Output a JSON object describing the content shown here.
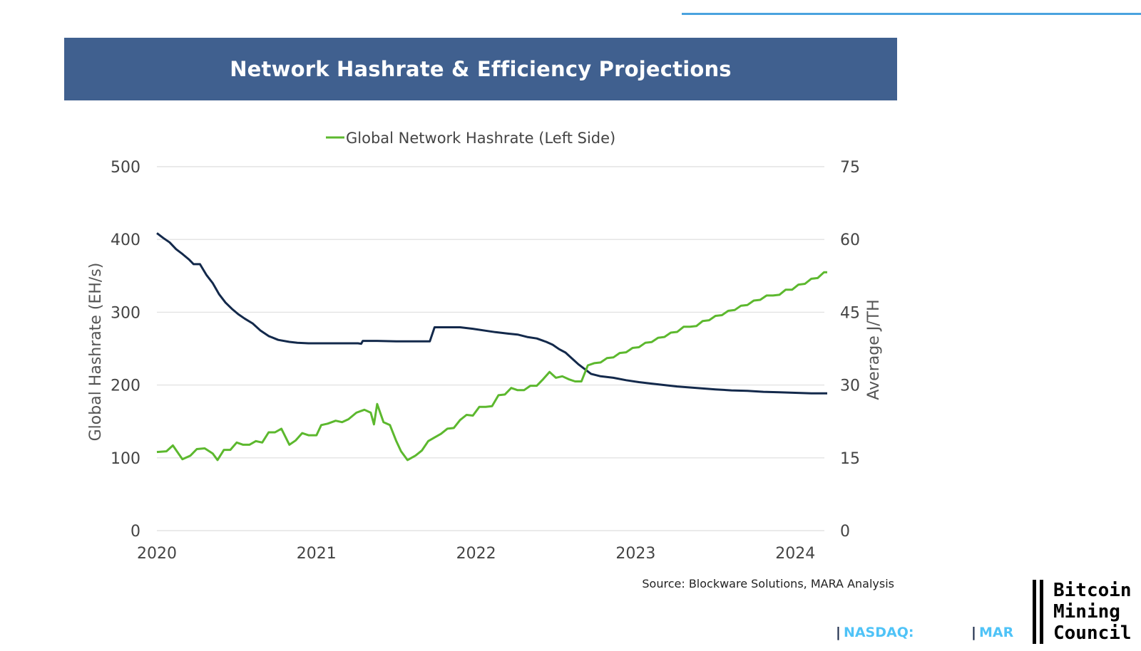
{
  "page": {
    "title": "Network Hashrate & Efficiency Projections",
    "source": "Source: Blockware Solutions, MARA Analysis",
    "footer": {
      "nasdaq_label": "NASDAQ:",
      "ticker": "MAR",
      "logo_lines": [
        "Bitcoin",
        "Mining",
        "Council"
      ]
    }
  },
  "colors": {
    "banner": "#40608f",
    "hashrate_line": "#5cb82e",
    "efficiency_line": "#13294b",
    "grid": "#e3e3e3",
    "accent": "#4aa3df"
  },
  "chart_data": {
    "type": "line",
    "legend": {
      "placement": "top-center",
      "entries": [
        "Global Network Hashrate (Left Side)"
      ]
    },
    "grid": true,
    "xlabel": "",
    "x_ticks": [
      "2020",
      "2021",
      "2022",
      "2023",
      "2024"
    ],
    "xlim": [
      2020.0,
      2024.2
    ],
    "y_left": {
      "label": "Global Hashrate (EH/s)",
      "lim": [
        0,
        500
      ],
      "ticks": [
        0,
        100,
        200,
        300,
        400,
        500
      ]
    },
    "y_right": {
      "label": "Average J/TH",
      "lim": [
        0,
        75
      ],
      "ticks": [
        0,
        15,
        30,
        45,
        60,
        75
      ]
    },
    "series": [
      {
        "name": "Global Network Hashrate (Left Side)",
        "axis": "left",
        "points": [
          [
            2020.0,
            108
          ],
          [
            2020.06,
            109
          ],
          [
            2020.1,
            117
          ],
          [
            2020.16,
            98
          ],
          [
            2020.21,
            103
          ],
          [
            2020.25,
            112
          ],
          [
            2020.3,
            113
          ],
          [
            2020.35,
            106
          ],
          [
            2020.38,
            97
          ],
          [
            2020.42,
            111
          ],
          [
            2020.46,
            111
          ],
          [
            2020.5,
            121
          ],
          [
            2020.54,
            118
          ],
          [
            2020.58,
            118
          ],
          [
            2020.62,
            123
          ],
          [
            2020.66,
            121
          ],
          [
            2020.7,
            135
          ],
          [
            2020.74,
            135
          ],
          [
            2020.78,
            140
          ],
          [
            2020.83,
            118
          ],
          [
            2020.87,
            124
          ],
          [
            2020.91,
            134
          ],
          [
            2020.95,
            131
          ],
          [
            2021.0,
            131
          ],
          [
            2021.03,
            145
          ],
          [
            2021.07,
            147
          ],
          [
            2021.12,
            151
          ],
          [
            2021.16,
            149
          ],
          [
            2021.2,
            153
          ],
          [
            2021.25,
            162
          ],
          [
            2021.3,
            166
          ],
          [
            2021.34,
            162
          ],
          [
            2021.36,
            146
          ],
          [
            2021.38,
            174
          ],
          [
            2021.42,
            149
          ],
          [
            2021.46,
            145
          ],
          [
            2021.5,
            123
          ],
          [
            2021.53,
            109
          ],
          [
            2021.57,
            97
          ],
          [
            2021.62,
            103
          ],
          [
            2021.66,
            110
          ],
          [
            2021.7,
            123
          ],
          [
            2021.74,
            128
          ],
          [
            2021.78,
            133
          ],
          [
            2021.82,
            140
          ],
          [
            2021.86,
            141
          ],
          [
            2021.9,
            152
          ],
          [
            2021.94,
            159
          ],
          [
            2021.98,
            158
          ],
          [
            2022.02,
            170
          ],
          [
            2022.06,
            170
          ],
          [
            2022.1,
            171
          ],
          [
            2022.14,
            186
          ],
          [
            2022.18,
            187
          ],
          [
            2022.22,
            196
          ],
          [
            2022.26,
            193
          ],
          [
            2022.3,
            193
          ],
          [
            2022.34,
            199
          ],
          [
            2022.38,
            199
          ],
          [
            2022.42,
            208
          ],
          [
            2022.46,
            218
          ],
          [
            2022.5,
            210
          ],
          [
            2022.54,
            212
          ],
          [
            2022.58,
            208
          ],
          [
            2022.62,
            205
          ],
          [
            2022.66,
            205
          ],
          [
            2022.7,
            227
          ],
          [
            2022.74,
            230
          ],
          [
            2022.78,
            231
          ],
          [
            2022.82,
            237
          ],
          [
            2022.86,
            238
          ],
          [
            2022.9,
            244
          ],
          [
            2022.94,
            245
          ],
          [
            2022.98,
            251
          ],
          [
            2023.02,
            252
          ],
          [
            2023.06,
            258
          ],
          [
            2023.1,
            259
          ],
          [
            2023.14,
            265
          ],
          [
            2023.18,
            266
          ],
          [
            2023.22,
            272
          ],
          [
            2023.26,
            273
          ],
          [
            2023.3,
            280
          ],
          [
            2023.34,
            280
          ],
          [
            2023.38,
            281
          ],
          [
            2023.42,
            288
          ],
          [
            2023.46,
            289
          ],
          [
            2023.5,
            295
          ],
          [
            2023.54,
            296
          ],
          [
            2023.58,
            302
          ],
          [
            2023.62,
            303
          ],
          [
            2023.66,
            309
          ],
          [
            2023.7,
            310
          ],
          [
            2023.74,
            316
          ],
          [
            2023.78,
            317
          ],
          [
            2023.82,
            323
          ],
          [
            2023.86,
            323
          ],
          [
            2023.9,
            324
          ],
          [
            2023.94,
            331
          ],
          [
            2023.98,
            331
          ],
          [
            2024.02,
            338
          ],
          [
            2024.06,
            339
          ],
          [
            2024.1,
            346
          ],
          [
            2024.14,
            347
          ],
          [
            2024.18,
            355
          ],
          [
            2024.2,
            355
          ]
        ]
      },
      {
        "axis": "right",
        "points": [
          [
            2020.0,
            61.3
          ],
          [
            2020.04,
            60.3
          ],
          [
            2020.08,
            59.4
          ],
          [
            2020.12,
            58.0
          ],
          [
            2020.16,
            57.0
          ],
          [
            2020.2,
            55.9
          ],
          [
            2020.23,
            54.9
          ],
          [
            2020.27,
            54.9
          ],
          [
            2020.31,
            52.7
          ],
          [
            2020.35,
            51.0
          ],
          [
            2020.39,
            48.7
          ],
          [
            2020.43,
            47.0
          ],
          [
            2020.47,
            45.7
          ],
          [
            2020.51,
            44.6
          ],
          [
            2020.55,
            43.7
          ],
          [
            2020.6,
            42.7
          ],
          [
            2020.65,
            41.2
          ],
          [
            2020.7,
            40.1
          ],
          [
            2020.76,
            39.3
          ],
          [
            2020.83,
            38.9
          ],
          [
            2020.88,
            38.7
          ],
          [
            2020.95,
            38.6
          ],
          [
            2021.02,
            38.6
          ],
          [
            2021.1,
            38.6
          ],
          [
            2021.18,
            38.6
          ],
          [
            2021.26,
            38.6
          ],
          [
            2021.28,
            38.5
          ],
          [
            2021.29,
            39.1
          ],
          [
            2021.38,
            39.1
          ],
          [
            2021.5,
            39.0
          ],
          [
            2021.6,
            39.0
          ],
          [
            2021.68,
            39.0
          ],
          [
            2021.71,
            39.0
          ],
          [
            2021.74,
            41.9
          ],
          [
            2021.82,
            41.9
          ],
          [
            2021.9,
            41.9
          ],
          [
            2021.98,
            41.6
          ],
          [
            2022.06,
            41.2
          ],
          [
            2022.12,
            40.9
          ],
          [
            2022.2,
            40.6
          ],
          [
            2022.26,
            40.4
          ],
          [
            2022.32,
            39.9
          ],
          [
            2022.38,
            39.6
          ],
          [
            2022.44,
            38.9
          ],
          [
            2022.48,
            38.3
          ],
          [
            2022.52,
            37.4
          ],
          [
            2022.56,
            36.7
          ],
          [
            2022.6,
            35.5
          ],
          [
            2022.64,
            34.3
          ],
          [
            2022.68,
            33.3
          ],
          [
            2022.72,
            32.3
          ],
          [
            2022.78,
            31.8
          ],
          [
            2022.86,
            31.5
          ],
          [
            2022.94,
            31.0
          ],
          [
            2023.02,
            30.6
          ],
          [
            2023.1,
            30.3
          ],
          [
            2023.18,
            30.0
          ],
          [
            2023.26,
            29.7
          ],
          [
            2023.34,
            29.5
          ],
          [
            2023.42,
            29.3
          ],
          [
            2023.5,
            29.1
          ],
          [
            2023.6,
            28.9
          ],
          [
            2023.7,
            28.8
          ],
          [
            2023.8,
            28.6
          ],
          [
            2023.9,
            28.5
          ],
          [
            2024.0,
            28.4
          ],
          [
            2024.1,
            28.3
          ],
          [
            2024.2,
            28.3
          ]
        ]
      }
    ]
  }
}
